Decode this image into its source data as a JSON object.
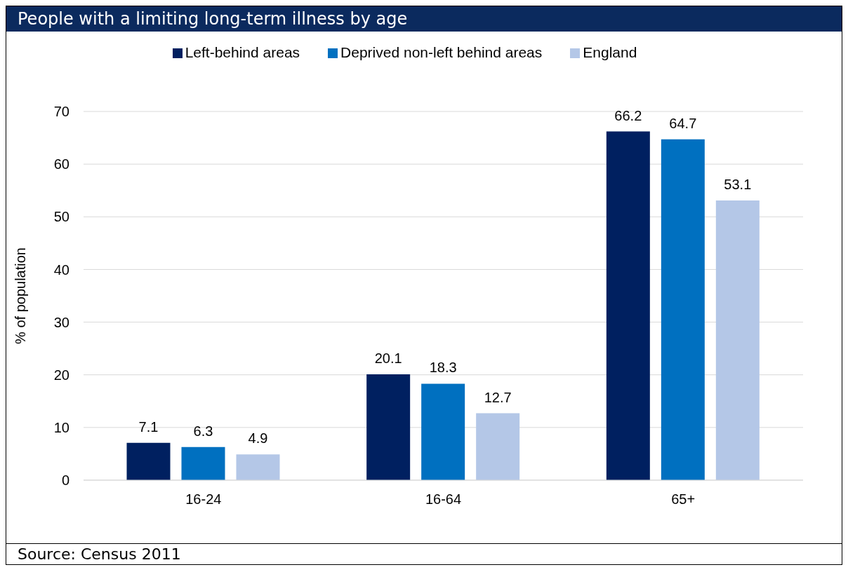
{
  "chart_data": {
    "type": "bar",
    "title": "People with a limiting long-term illness by age",
    "ylabel": "% of population",
    "categories": [
      "16-24",
      "16-64",
      "65+"
    ],
    "series": [
      {
        "name": "Left-behind areas",
        "color": "#002060",
        "values": [
          7.1,
          20.1,
          66.2
        ]
      },
      {
        "name": "Deprived non-left behind areas",
        "color": "#0070c0",
        "values": [
          6.3,
          18.3,
          64.7
        ]
      },
      {
        "name": "England",
        "color": "#b4c7e7",
        "values": [
          4.9,
          12.7,
          53.1
        ]
      }
    ],
    "ylim": [
      0,
      70
    ],
    "yticks": [
      0,
      10,
      20,
      30,
      40,
      50,
      60,
      70
    ],
    "grid": "y",
    "legend": "top",
    "data_labels": true,
    "annotations": [
      "Source: Census 2011"
    ]
  }
}
